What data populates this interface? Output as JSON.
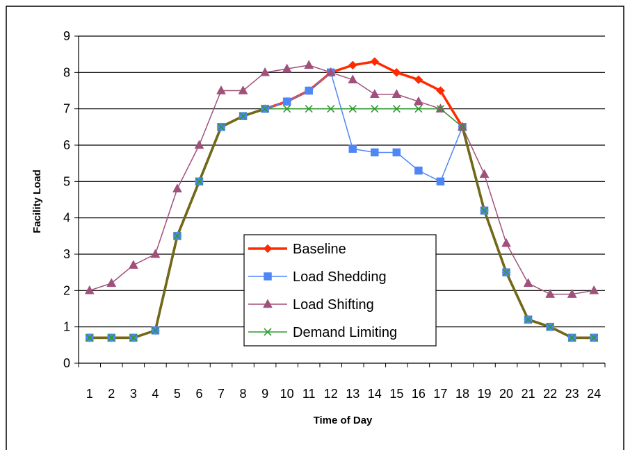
{
  "chart_data": {
    "type": "line",
    "title": "",
    "xlabel": "Time of Day",
    "ylabel": "Facility Load",
    "x": [
      1,
      2,
      3,
      4,
      5,
      6,
      7,
      8,
      9,
      10,
      11,
      12,
      13,
      14,
      15,
      16,
      17,
      18,
      19,
      20,
      21,
      22,
      23,
      24
    ],
    "ylim": [
      0,
      9
    ],
    "yticks": [
      0,
      1,
      2,
      3,
      4,
      5,
      6,
      7,
      8,
      9
    ],
    "grid": "horizontal",
    "legend_position": "center-left",
    "series": [
      {
        "name": "Baseline",
        "color": "#ff2a00",
        "marker": "diamond",
        "values": [
          0.7,
          0.7,
          0.7,
          0.9,
          3.5,
          5.0,
          6.5,
          6.8,
          7.0,
          7.2,
          7.5,
          8.0,
          8.2,
          8.3,
          8.0,
          7.8,
          7.5,
          6.5,
          4.2,
          2.5,
          1.2,
          1.0,
          0.7,
          0.7
        ]
      },
      {
        "name": "Load Shedding",
        "color": "#4f86f7",
        "marker": "square",
        "values": [
          0.7,
          0.7,
          0.7,
          0.9,
          3.5,
          5.0,
          6.5,
          6.8,
          7.0,
          7.2,
          7.5,
          8.0,
          5.9,
          5.8,
          5.8,
          5.3,
          5.0,
          6.5,
          4.2,
          2.5,
          1.2,
          1.0,
          0.7,
          0.7
        ]
      },
      {
        "name": "Load Shifting",
        "color": "#a0507a",
        "marker": "triangle",
        "values": [
          2.0,
          2.2,
          2.7,
          3.0,
          4.8,
          6.0,
          7.5,
          7.5,
          8.0,
          8.1,
          8.2,
          8.0,
          7.8,
          7.4,
          7.4,
          7.2,
          7.0,
          6.5,
          5.2,
          3.3,
          2.2,
          1.9,
          1.9,
          2.0
        ]
      },
      {
        "name": "Demand Limiting",
        "color": "#2e9a2e",
        "marker": "x",
        "values": [
          0.7,
          0.7,
          0.7,
          0.9,
          3.5,
          5.0,
          6.5,
          6.8,
          7.0,
          7.0,
          7.0,
          7.0,
          7.0,
          7.0,
          7.0,
          7.0,
          7.0,
          6.5,
          4.2,
          2.5,
          1.2,
          1.0,
          0.7,
          0.7
        ]
      }
    ]
  }
}
